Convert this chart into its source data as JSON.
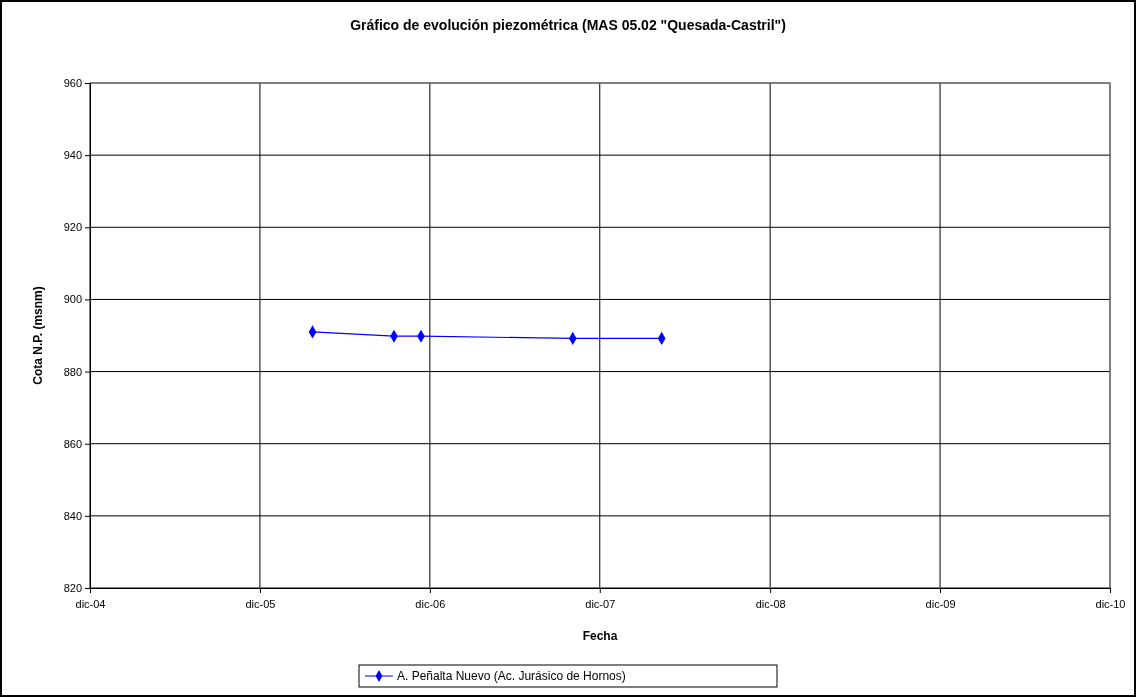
{
  "chart_data": {
    "type": "line",
    "title": "Gráfico de evolución piezométrica (MAS 05.02 \"Quesada-Castril\")",
    "xlabel": "Fecha",
    "ylabel": "Cota N.P. (msnm)",
    "x": [
      "2006-03-24",
      "2006-09-15",
      "2006-11-12",
      "2007-10-04",
      "2008-04-12"
    ],
    "series": [
      {
        "name": "A. Peñalta Nuevo (Ac. Jurásico de Hornos)",
        "color": "#0000ff",
        "values": [
          891.0,
          889.8,
          889.8,
          889.2,
          889.2
        ]
      }
    ],
    "xlim": [
      "2004-12-01",
      "2010-12-01"
    ],
    "xticks": [
      {
        "value": "2004-12-01",
        "label": "dic-04"
      },
      {
        "value": "2005-12-01",
        "label": "dic-05"
      },
      {
        "value": "2006-12-01",
        "label": "dic-06"
      },
      {
        "value": "2007-12-01",
        "label": "dic-07"
      },
      {
        "value": "2008-12-01",
        "label": "dic-08"
      },
      {
        "value": "2009-12-01",
        "label": "dic-09"
      },
      {
        "value": "2010-12-01",
        "label": "dic-10"
      }
    ],
    "ylim": [
      820,
      960
    ],
    "yticks": [
      820,
      840,
      860,
      880,
      900,
      920,
      940,
      960
    ],
    "grid": true,
    "legend": "bottom",
    "marker": "diamond",
    "line_style": "solid"
  }
}
